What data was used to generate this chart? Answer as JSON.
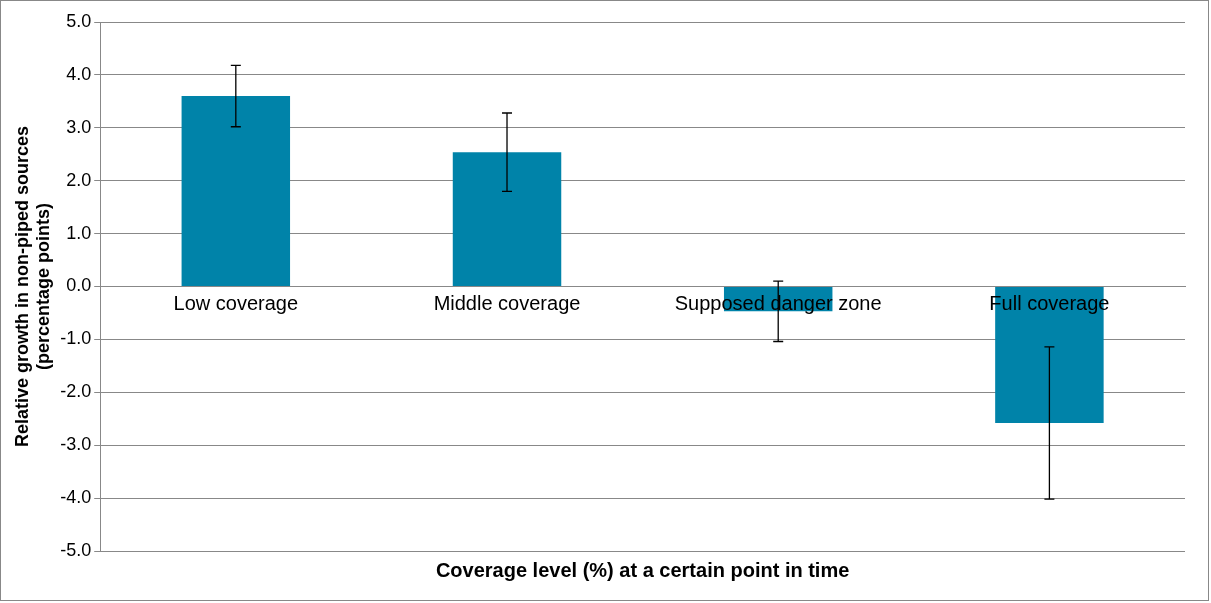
{
  "chart_data": {
    "type": "bar",
    "xlabel": "Coverage level (%) at a certain point in time",
    "ylabel": "Relative growth in non-piped sources (percentage points)",
    "categories": [
      "Low coverage",
      "Middle coverage",
      "Supposed danger zone",
      "Full coverage"
    ],
    "values": [
      3.6,
      2.54,
      -0.47,
      -2.58
    ],
    "errors": [
      0.58,
      0.74,
      0.57,
      1.44
    ],
    "color": "#0083a9",
    "ylim": [
      -5,
      5
    ],
    "yticks": [
      {
        "value": -5,
        "label": "-5.0"
      },
      {
        "value": -4,
        "label": "-4.0"
      },
      {
        "value": -3,
        "label": "-3.0"
      },
      {
        "value": -2,
        "label": "-2.0"
      },
      {
        "value": -1,
        "label": "-1.0"
      },
      {
        "value": 0,
        "label": "0.0"
      },
      {
        "value": 1,
        "label": "1.0"
      },
      {
        "value": 2,
        "label": "2.0"
      },
      {
        "value": 3,
        "label": "3.0"
      },
      {
        "value": 4,
        "label": "4.0"
      },
      {
        "value": 5,
        "label": "5.0"
      }
    ],
    "grid": "y",
    "legend": false
  }
}
